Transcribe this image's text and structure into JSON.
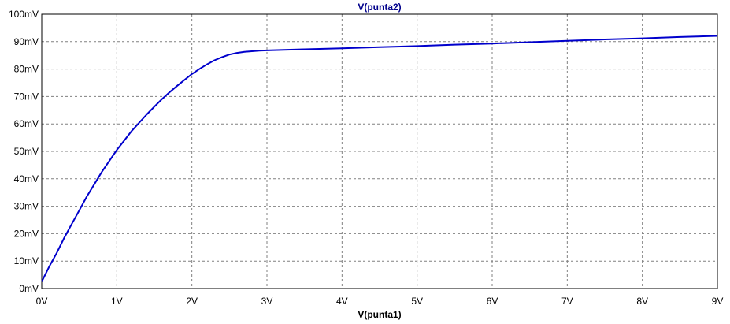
{
  "chart_data": {
    "type": "line",
    "title": "V(punta2)",
    "xlabel": "V(punta1)",
    "ylabel": "",
    "xlim": [
      0,
      9
    ],
    "ylim": [
      0,
      100
    ],
    "x_ticks": [
      "0V",
      "1V",
      "2V",
      "3V",
      "4V",
      "5V",
      "6V",
      "7V",
      "8V",
      "9V"
    ],
    "y_ticks": [
      "0mV",
      "10mV",
      "20mV",
      "30mV",
      "40mV",
      "50mV",
      "60mV",
      "70mV",
      "80mV",
      "90mV",
      "100mV"
    ],
    "grid": true,
    "grid_style": "dashed",
    "series": [
      {
        "color": "#0000cc",
        "x": [
          0,
          0.1,
          0.2,
          0.3,
          0.4,
          0.5,
          0.6,
          0.7,
          0.8,
          0.9,
          1.0,
          1.1,
          1.2,
          1.3,
          1.4,
          1.5,
          1.6,
          1.7,
          1.8,
          1.9,
          2.0,
          2.1,
          2.2,
          2.3,
          2.4,
          2.5,
          2.6,
          2.7,
          2.8,
          2.9,
          3.0,
          3.5,
          4.0,
          4.5,
          5.0,
          5.5,
          6.0,
          6.5,
          7.0,
          7.5,
          8.0,
          8.5,
          9.0
        ],
        "values": [
          2.5,
          8.0,
          13.0,
          18.5,
          23.5,
          28.5,
          33.5,
          38.0,
          42.5,
          46.5,
          50.5,
          54.0,
          57.5,
          60.5,
          63.5,
          66.3,
          69.0,
          71.5,
          73.8,
          76.0,
          78.2,
          80.0,
          81.7,
          83.2,
          84.3,
          85.3,
          85.9,
          86.3,
          86.5,
          86.7,
          86.8,
          87.2,
          87.6,
          88.0,
          88.4,
          88.9,
          89.3,
          89.8,
          90.3,
          90.8,
          91.2,
          91.7,
          92.1
        ]
      }
    ]
  }
}
